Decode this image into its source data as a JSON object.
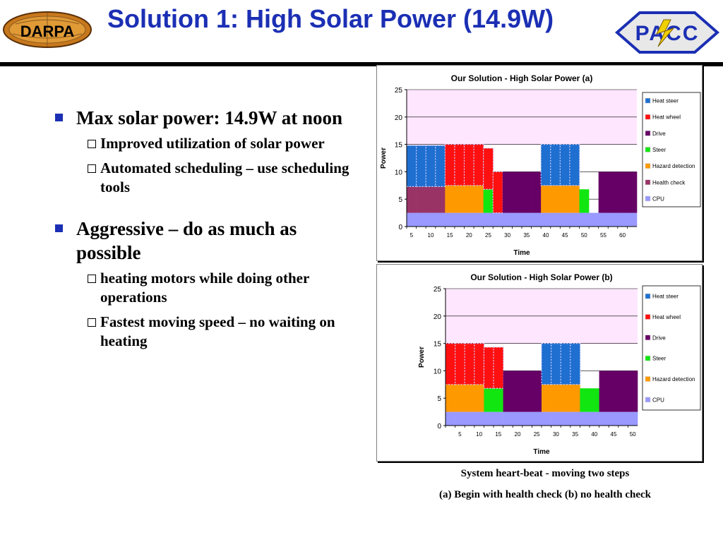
{
  "header": {
    "title": "Solution 1: High Solar Power (14.9W)",
    "darpa_logo_text": "DARPA",
    "pacc_logo_text": "PACC"
  },
  "bullets": [
    {
      "text": "Max solar power: 14.9W at noon",
      "subs": [
        "Improved utilization of solar power",
        "Automated scheduling – use scheduling tools"
      ]
    },
    {
      "text": "Aggressive – do as much as possible",
      "subs": [
        "heating motors while doing other operations",
        "Fastest moving speed – no waiting on heating"
      ]
    }
  ],
  "captions": {
    "line1": "System heart-beat - moving two steps",
    "line2": "(a) Begin with health check   (b) no health check"
  },
  "colors": {
    "title": "#1b2fb4",
    "plot_bg": "#ffe6ff",
    "Heat steer": "#1e6fd0",
    "Heat wheel": "#ff1010",
    "Drive": "#660066",
    "Steer": "#11e611",
    "Hazard detection": "#ff9900",
    "Health check": "#993366",
    "CPU": "#9999ff"
  },
  "chart_data": [
    {
      "type": "bar",
      "stacked": true,
      "title": "Our Solution - High Solar Power (a)",
      "xlabel": "Time",
      "ylabel": "Power",
      "ylim": [
        0,
        25
      ],
      "yticks": [
        0,
        5,
        10,
        15,
        20,
        25
      ],
      "categories": [
        "5",
        "",
        "10",
        "",
        "15",
        "",
        "20",
        "",
        "25",
        "",
        "30",
        "",
        "35",
        "",
        "40",
        "",
        "45",
        "",
        "50",
        "",
        "55",
        "",
        "60",
        ""
      ],
      "x_tick_labels": [
        "5",
        "10",
        "15",
        "20",
        "25",
        "30",
        "35",
        "40",
        "45",
        "50",
        "55",
        "60"
      ],
      "solar_power_line": 14.9,
      "legend_position": "right",
      "series": [
        {
          "name": "CPU",
          "values": [
            2.5,
            2.5,
            2.5,
            2.5,
            2.5,
            2.5,
            2.5,
            2.5,
            2.5,
            2.5,
            2.5,
            2.5,
            2.5,
            2.5,
            2.5,
            2.5,
            2.5,
            2.5,
            2.5,
            2.5,
            2.5,
            2.5,
            2.5,
            2.5
          ]
        },
        {
          "name": "Health check",
          "values": [
            4.8,
            4.8,
            4.8,
            4.8,
            0,
            0,
            0,
            0,
            0,
            0,
            0,
            0,
            0,
            0,
            0,
            0,
            0,
            0,
            0,
            0,
            0,
            0,
            0,
            0
          ]
        },
        {
          "name": "Hazard detection",
          "values": [
            0,
            0,
            0,
            0,
            5,
            5,
            5,
            5,
            0,
            0,
            0,
            0,
            0,
            0,
            5,
            5,
            5,
            5,
            0,
            0,
            0,
            0,
            0,
            0
          ]
        },
        {
          "name": "Steer",
          "values": [
            0,
            0,
            0,
            0,
            0,
            0,
            0,
            0,
            4.3,
            0,
            0,
            0,
            0,
            0,
            0,
            0,
            0,
            0,
            4.3,
            0,
            0,
            0,
            0,
            0
          ]
        },
        {
          "name": "Drive",
          "values": [
            0,
            0,
            0,
            0,
            0,
            0,
            0,
            0,
            0,
            0,
            7.5,
            7.5,
            7.5,
            7.5,
            0,
            0,
            0,
            0,
            0,
            0,
            7.5,
            7.5,
            7.5,
            7.5
          ]
        },
        {
          "name": "Heat wheel",
          "values": [
            0,
            0,
            0,
            0,
            7.5,
            7.5,
            7.5,
            7.5,
            7.5,
            7.5,
            0,
            0,
            0,
            0,
            0,
            0,
            0,
            0,
            0,
            0,
            0,
            0,
            0,
            0
          ]
        },
        {
          "name": "Heat steer",
          "values": [
            7.5,
            7.5,
            7.5,
            7.5,
            0,
            0,
            0,
            0,
            0,
            0,
            0,
            0,
            0,
            0,
            7.5,
            7.5,
            7.5,
            7.5,
            0,
            0,
            0,
            0,
            0,
            0
          ]
        }
      ]
    },
    {
      "type": "bar",
      "stacked": true,
      "title": "Our Solution - High Solar Power (b)",
      "xlabel": "Time",
      "ylabel": "Power",
      "ylim": [
        0,
        25
      ],
      "yticks": [
        0,
        5,
        10,
        15,
        20,
        25
      ],
      "categories": [
        "",
        "5",
        "",
        "10",
        "",
        "15",
        "",
        "20",
        "",
        "25",
        "",
        "30",
        "",
        "35",
        "",
        "40",
        "",
        "45",
        "",
        "50"
      ],
      "x_tick_labels": [
        "5",
        "10",
        "15",
        "20",
        "25",
        "30",
        "35",
        "40",
        "45",
        "50"
      ],
      "solar_power_line": 14.9,
      "legend_position": "right",
      "series": [
        {
          "name": "CPU",
          "values": [
            2.5,
            2.5,
            2.5,
            2.5,
            2.5,
            2.5,
            2.5,
            2.5,
            2.5,
            2.5,
            2.5,
            2.5,
            2.5,
            2.5,
            2.5,
            2.5,
            2.5,
            2.5,
            2.5,
            2.5
          ]
        },
        {
          "name": "Hazard detection",
          "values": [
            5,
            5,
            5,
            5,
            0,
            0,
            0,
            0,
            0,
            0,
            5,
            5,
            5,
            5,
            0,
            0,
            0,
            0,
            0,
            0
          ]
        },
        {
          "name": "Steer",
          "values": [
            0,
            0,
            0,
            0,
            4.3,
            4.3,
            0,
            0,
            0,
            0,
            0,
            0,
            0,
            0,
            4.3,
            4.3,
            0,
            0,
            0,
            0
          ]
        },
        {
          "name": "Drive",
          "values": [
            0,
            0,
            0,
            0,
            0,
            0,
            7.5,
            7.5,
            7.5,
            7.5,
            0,
            0,
            0,
            0,
            0,
            0,
            7.5,
            7.5,
            7.5,
            7.5
          ]
        },
        {
          "name": "Heat wheel",
          "values": [
            7.5,
            7.5,
            7.5,
            7.5,
            7.5,
            7.5,
            0,
            0,
            0,
            0,
            0,
            0,
            0,
            0,
            0,
            0,
            0,
            0,
            0,
            0
          ]
        },
        {
          "name": "Heat steer",
          "values": [
            0,
            0,
            0,
            0,
            0,
            0,
            0,
            0,
            0,
            0,
            7.5,
            7.5,
            7.5,
            7.5,
            0,
            0,
            0,
            0,
            0,
            0
          ]
        }
      ]
    }
  ]
}
